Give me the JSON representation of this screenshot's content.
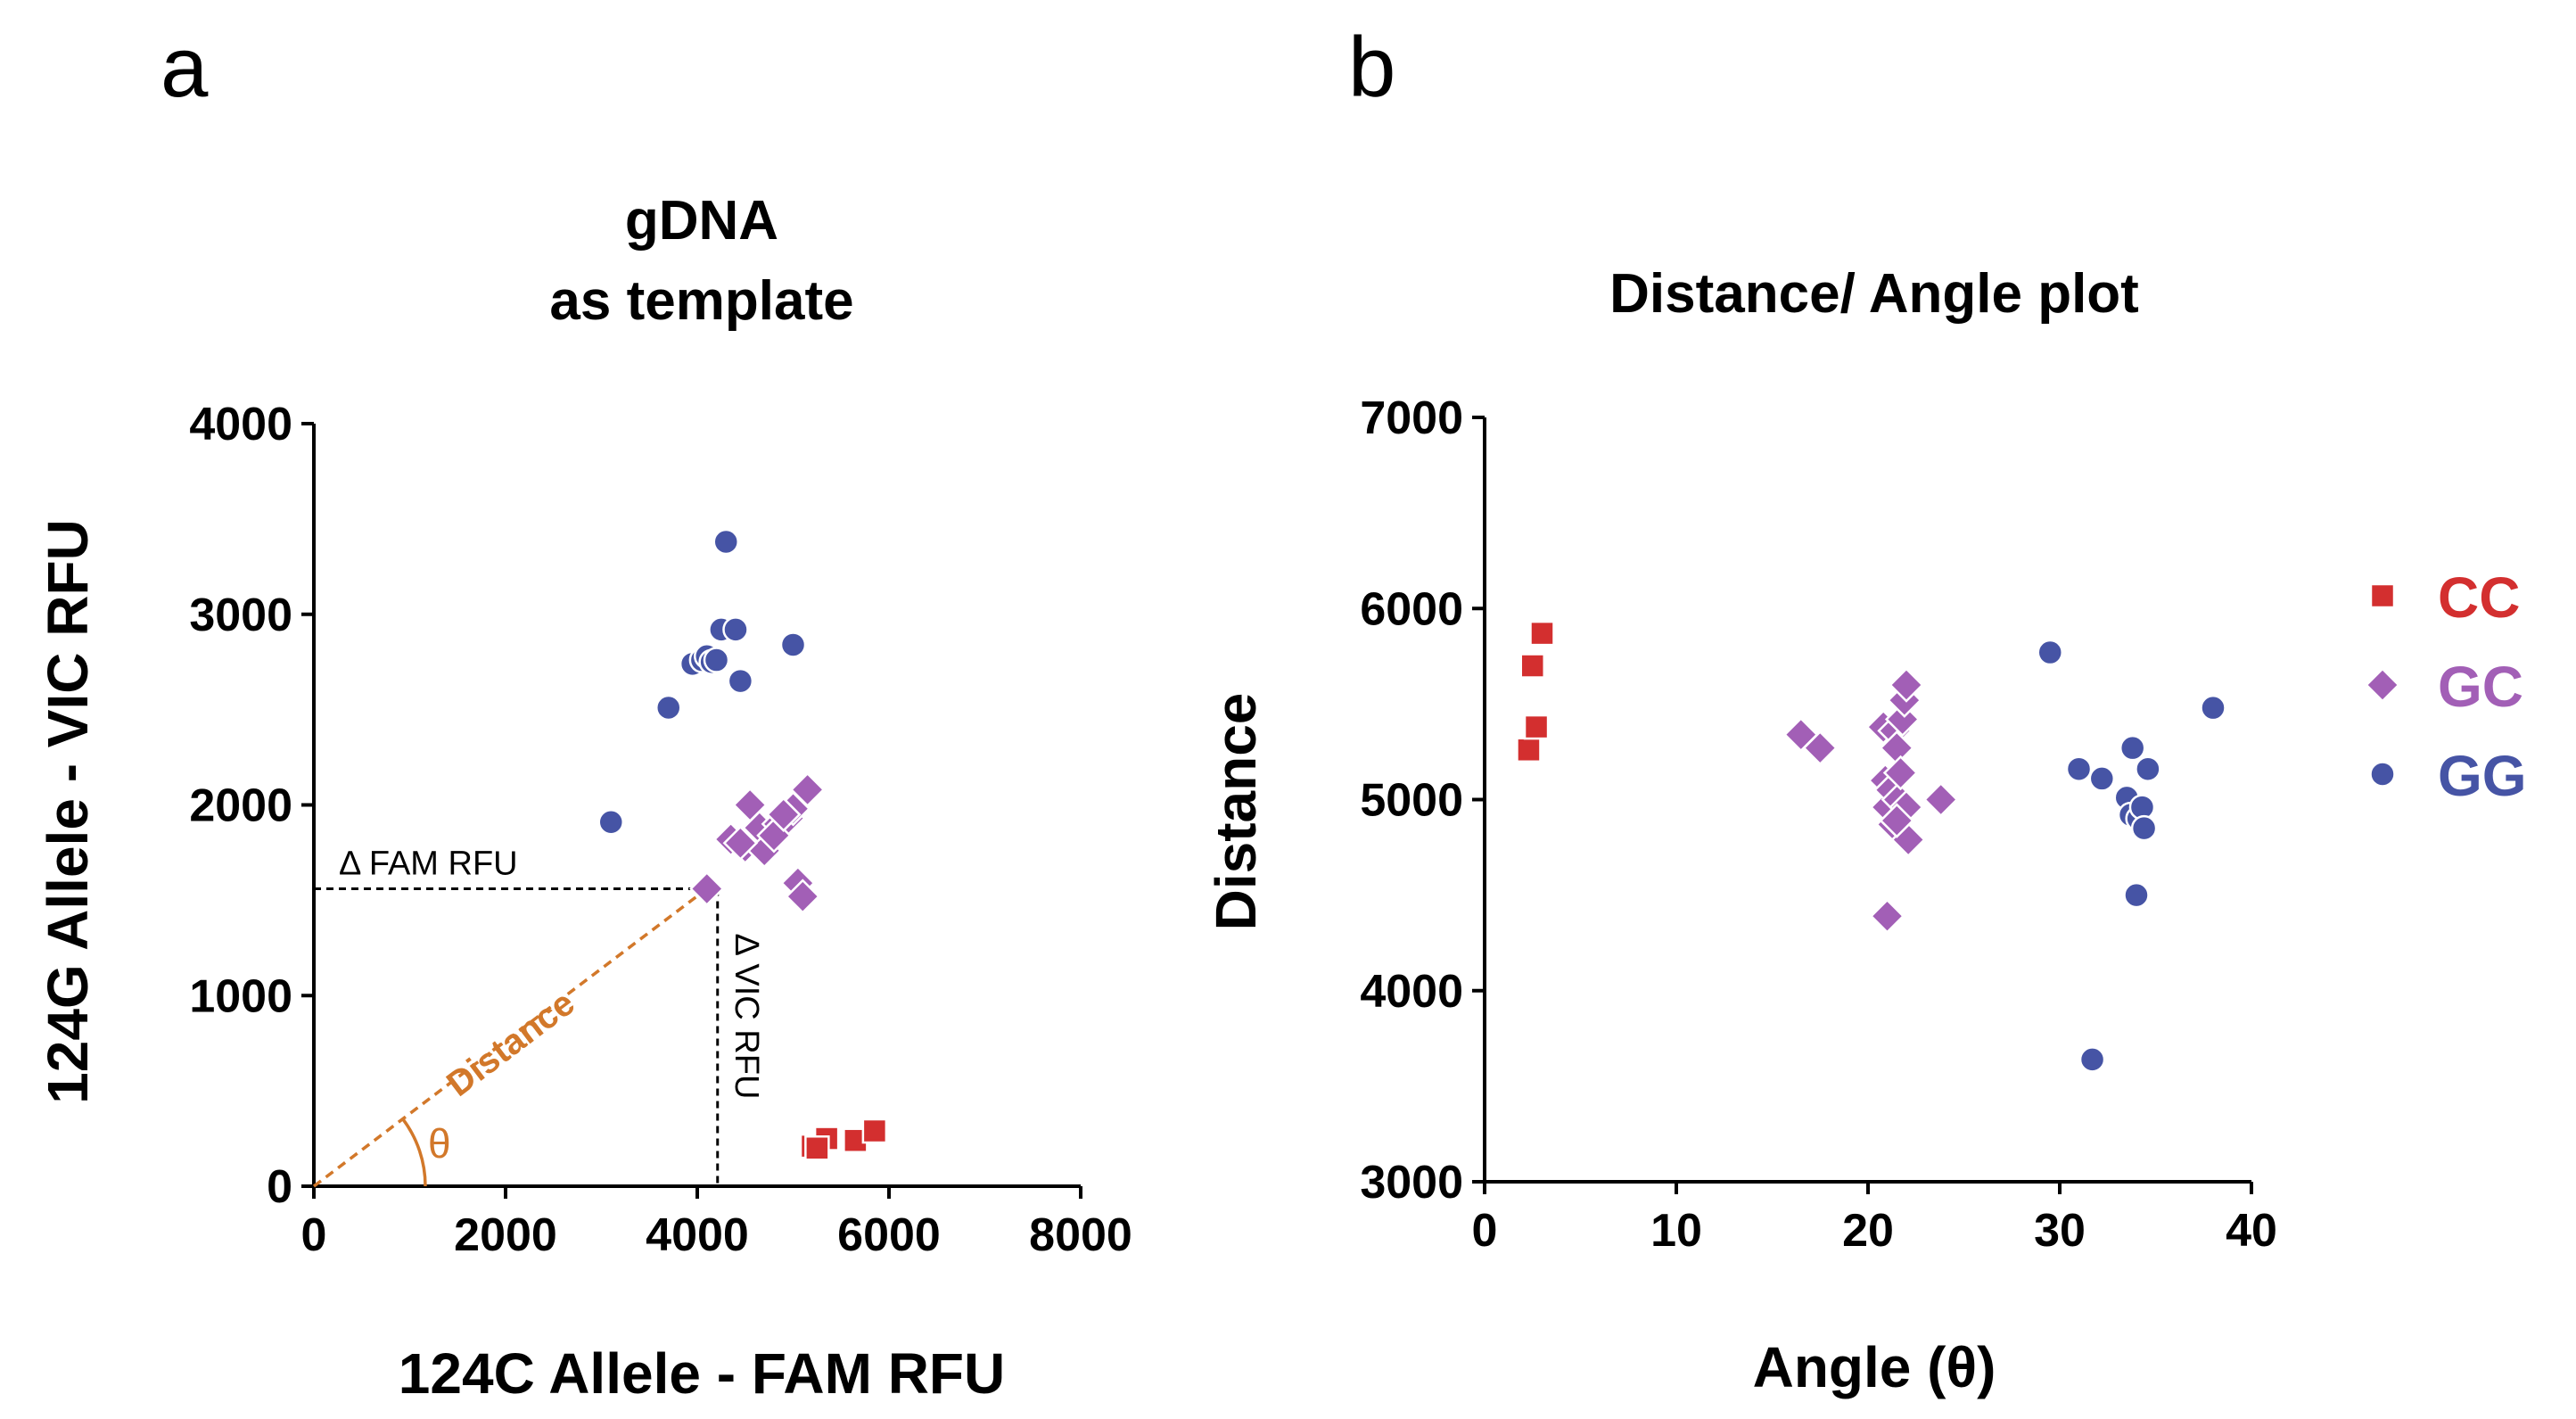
{
  "panels": {
    "a": {
      "letter": "a"
    },
    "b": {
      "letter": "b"
    }
  },
  "chart_data": [
    {
      "id": "a",
      "type": "scatter",
      "title_lines": [
        "gDNA",
        "as template"
      ],
      "xlabel": "124C Allele - FAM RFU",
      "ylabel": "124G Allele - VIC RFU",
      "xlim": [
        0,
        8000
      ],
      "ylim": [
        0,
        4000
      ],
      "xticks": [
        0,
        2000,
        4000,
        6000,
        8000
      ],
      "yticks": [
        0,
        1000,
        2000,
        3000,
        4000
      ],
      "series": [
        {
          "name": "CC",
          "color": "#d32f2f",
          "marker": "square",
          "points": [
            [
              5200,
              210
            ],
            [
              5350,
              250
            ],
            [
              5650,
              240
            ],
            [
              5850,
              290
            ],
            [
              5250,
              200
            ]
          ]
        },
        {
          "name": "GC",
          "color": "#a25fb6",
          "marker": "diamond",
          "points": [
            [
              4100,
              1560
            ],
            [
              4350,
              1820
            ],
            [
              4500,
              1780
            ],
            [
              4550,
              2000
            ],
            [
              4650,
              1880
            ],
            [
              4700,
              1760
            ],
            [
              4850,
              1900
            ],
            [
              4950,
              1930
            ],
            [
              5000,
              1980
            ],
            [
              5050,
              1590
            ],
            [
              5100,
              1520
            ],
            [
              5150,
              2080
            ],
            [
              4800,
              1840
            ],
            [
              4450,
              1800
            ],
            [
              4900,
              1950
            ]
          ]
        },
        {
          "name": "GG",
          "color": "#4654a5",
          "marker": "circle",
          "points": [
            [
              3100,
              1910
            ],
            [
              3700,
              2510
            ],
            [
              3950,
              2740
            ],
            [
              4050,
              2760
            ],
            [
              4100,
              2780
            ],
            [
              4150,
              2750
            ],
            [
              4200,
              2760
            ],
            [
              4250,
              2920
            ],
            [
              4300,
              3380
            ],
            [
              4400,
              2920
            ],
            [
              4450,
              2650
            ],
            [
              5000,
              2840
            ]
          ]
        }
      ],
      "annotations": {
        "delta_fam": "Δ FAM RFU",
        "delta_vic": "Δ VIC RFU",
        "distance": "Distance",
        "theta": "θ",
        "reference_point": [
          4100,
          1560
        ]
      }
    },
    {
      "id": "b",
      "type": "scatter",
      "title": "Distance/ Angle plot",
      "xlabel": "Angle (θ)",
      "ylabel": "Distance",
      "xlim": [
        0,
        40
      ],
      "ylim": [
        3000,
        7000
      ],
      "xticks": [
        0,
        10,
        20,
        30,
        40
      ],
      "yticks": [
        3000,
        4000,
        5000,
        6000,
        7000
      ],
      "series": [
        {
          "name": "CC",
          "color": "#d32f2f",
          "marker": "square",
          "points": [
            [
              2.3,
              5260
            ],
            [
              2.5,
              5700
            ],
            [
              2.7,
              5380
            ],
            [
              3.0,
              5870
            ]
          ]
        },
        {
          "name": "GC",
          "color": "#a25fb6",
          "marker": "diamond",
          "points": [
            [
              16.5,
              5340
            ],
            [
              17.5,
              5270
            ],
            [
              20.8,
              5380
            ],
            [
              20.9,
              5100
            ],
            [
              21.0,
              4960
            ],
            [
              21.0,
              4390
            ],
            [
              21.2,
              5050
            ],
            [
              21.3,
              4870
            ],
            [
              21.4,
              5360
            ],
            [
              21.5,
              5270
            ],
            [
              21.6,
              5000
            ],
            [
              21.7,
              5140
            ],
            [
              21.8,
              5420
            ],
            [
              21.9,
              5520
            ],
            [
              22.0,
              5600
            ],
            [
              22.0,
              4960
            ],
            [
              22.1,
              4790
            ],
            [
              21.5,
              4890
            ],
            [
              23.8,
              5000
            ]
          ]
        },
        {
          "name": "GG",
          "color": "#4654a5",
          "marker": "circle",
          "points": [
            [
              29.5,
              5770
            ],
            [
              31.0,
              5160
            ],
            [
              31.7,
              3640
            ],
            [
              32.2,
              5110
            ],
            [
              33.5,
              5010
            ],
            [
              33.7,
              4920
            ],
            [
              33.8,
              5270
            ],
            [
              34.0,
              4500
            ],
            [
              34.1,
              4900
            ],
            [
              34.3,
              4960
            ],
            [
              34.4,
              4850
            ],
            [
              34.6,
              5160
            ],
            [
              38.0,
              5480
            ]
          ]
        }
      ]
    }
  ],
  "legend": {
    "entries": [
      {
        "label": "CC",
        "color": "#d32f2f",
        "marker": "square"
      },
      {
        "label": "GC",
        "color": "#a25fb6",
        "marker": "diamond"
      },
      {
        "label": "GG",
        "color": "#4654a5",
        "marker": "circle"
      }
    ]
  }
}
